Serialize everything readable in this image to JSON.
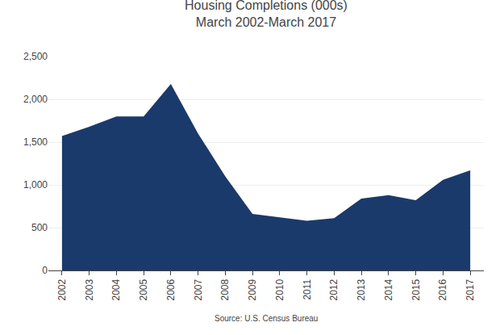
{
  "chart_data": {
    "type": "area",
    "title": "Housing Completions (000s)\nMarch 2002-March 2017",
    "annotations": [
      "Source: U.S. Census Bureau"
    ],
    "x": [
      2002,
      2003,
      2004,
      2005,
      2006,
      2007,
      2008,
      2009,
      2010,
      2011,
      2012,
      2013,
      2014,
      2015,
      2016,
      2017
    ],
    "values": [
      1570,
      1680,
      1800,
      1800,
      2180,
      1600,
      1100,
      660,
      620,
      580,
      610,
      840,
      880,
      820,
      1060,
      1170
    ],
    "color": "#1a3a6b",
    "xlim": [
      2001.5,
      2017.5
    ],
    "xticks": [
      2002,
      2003,
      2004,
      2005,
      2006,
      2007,
      2008,
      2009,
      2010,
      2011,
      2012,
      2013,
      2014,
      2015,
      2016,
      2017
    ],
    "ylim": [
      0,
      2500
    ],
    "yticks": [
      0,
      500,
      {
        "value": 1000,
        "label": "1,000"
      },
      {
        "value": 1500,
        "label": "1,500"
      },
      {
        "value": 2000,
        "label": "2,000"
      },
      {
        "value": 2500,
        "label": "2,500"
      }
    ],
    "grid": true
  }
}
